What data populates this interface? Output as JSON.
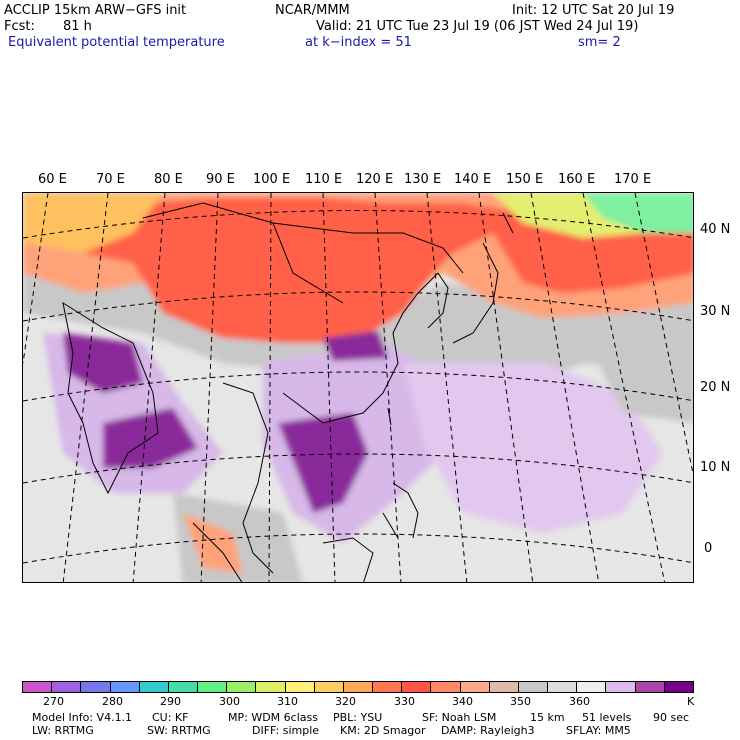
{
  "header": {
    "model": "ACCLIP 15km ARW−GFS init",
    "center": "NCAR/MMM",
    "init": "Init: 12 UTC Sat 20 Jul 19",
    "fcst_label": "Fcst:",
    "fcst_value": "81 h",
    "valid": "Valid: 21 UTC Tue 23 Jul 19 (06 JST Wed 24 Jul 19)",
    "field": "Equivalent potential temperature",
    "level": "at k−index =  51",
    "smooth": "sm=  2"
  },
  "map": {
    "lon_labels": [
      "60 E",
      "70 E",
      "80 E",
      "90 E",
      "100 E",
      "110 E",
      "120 E",
      "130 E",
      "140 E",
      "150 E",
      "160 E",
      "170 E"
    ],
    "lat_labels": [
      "40 N",
      "30 N",
      "20 N",
      "10 N",
      "0"
    ],
    "region": "East and South Asia / Western Pacific",
    "colors": {
      "warm": "#ff6147",
      "orange": "#ffa070",
      "gray": "#c8c8c8",
      "light_gray": "#e6e6e6",
      "lilac": "#d7b8e8",
      "purple": "#8a2c9a",
      "green_top": "#66f2a0"
    }
  },
  "colorbar": {
    "colors": [
      "#cc55cc",
      "#a060e0",
      "#7878ee",
      "#6699ff",
      "#33cccc",
      "#44ddaa",
      "#66ee88",
      "#99ee66",
      "#ddee66",
      "#ffee77",
      "#ffcc66",
      "#ffaa55",
      "#ff7755",
      "#ff5544",
      "#ff8866",
      "#ffaa88",
      "#ddbbaa",
      "#c8c8c8",
      "#dddddd",
      "#eeeeee",
      "#ddbbee",
      "#aa44aa",
      "#770088"
    ],
    "labels": [
      "270",
      "280",
      "290",
      "300",
      "310",
      "320",
      "330",
      "340",
      "350",
      "360"
    ],
    "unit": "K"
  },
  "info": {
    "line1": [
      "Model Info: V4.1.1",
      "CU: KF",
      "MP: WDM 6class",
      "PBL: YSU",
      "SF: Noah LSM",
      "15 km",
      "51 levels",
      "90 sec"
    ],
    "line2": [
      "LW: RRTMG",
      "SW: RRTMG",
      "DIFF: simple",
      "KM: 2D Smagor",
      "DAMP: Rayleigh3",
      "SFLAY: MM5"
    ]
  }
}
